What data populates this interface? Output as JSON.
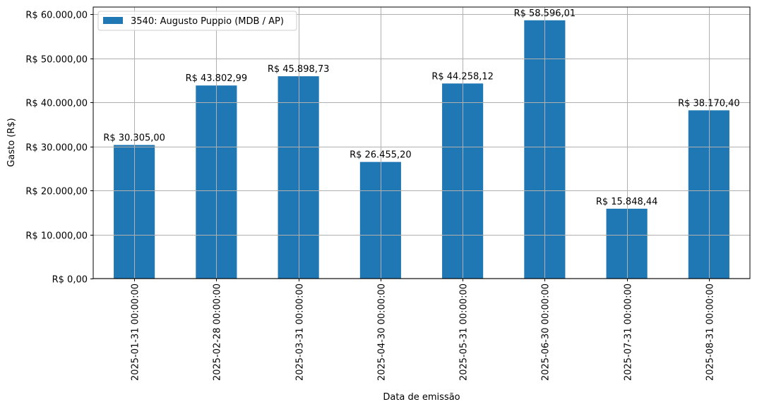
{
  "chart_data": {
    "type": "bar",
    "title": "",
    "xlabel": "Data de emissão",
    "ylabel": "Gasto (R$)",
    "ylim": [
      0,
      61000
    ],
    "grid": true,
    "legend_position": "upper left",
    "legend": [
      "3540: Augusto Puppio (MDB / AP)"
    ],
    "categories": [
      "2025-01-31 00:00:00",
      "2025-02-28 00:00:00",
      "2025-03-31 00:00:00",
      "2025-04-30 00:00:00",
      "2025-05-31 00:00:00",
      "2025-06-30 00:00:00",
      "2025-07-31 00:00:00",
      "2025-08-31 00:00:00"
    ],
    "series": [
      {
        "name": "3540: Augusto Puppio (MDB / AP)",
        "color": "#1f77b4",
        "values": [
          30305.0,
          43802.99,
          45898.73,
          26455.2,
          44258.12,
          58596.01,
          15848.44,
          38170.4
        ],
        "labels": [
          "R$ 30.305,00",
          "R$ 43.802,99",
          "R$ 45.898,73",
          "R$ 26.455,20",
          "R$ 44.258,12",
          "R$ 58.596,01",
          "R$ 15.848,44",
          "R$ 38.170,40"
        ]
      }
    ],
    "y_ticks": [
      {
        "value": 0,
        "label": "R$ 0,00"
      },
      {
        "value": 10000,
        "label": "R$ 10.000,00"
      },
      {
        "value": 20000,
        "label": "R$ 20.000,00"
      },
      {
        "value": 30000,
        "label": "R$ 30.000,00"
      },
      {
        "value": 40000,
        "label": "R$ 40.000,00"
      },
      {
        "value": 50000,
        "label": "R$ 50.000,00"
      },
      {
        "value": 60000,
        "label": "R$ 60.000,00"
      }
    ]
  },
  "colors": {
    "bar": "#1f77b4",
    "grid": "#b0b0b0",
    "axis": "#000000",
    "legend_border": "#cccccc"
  }
}
